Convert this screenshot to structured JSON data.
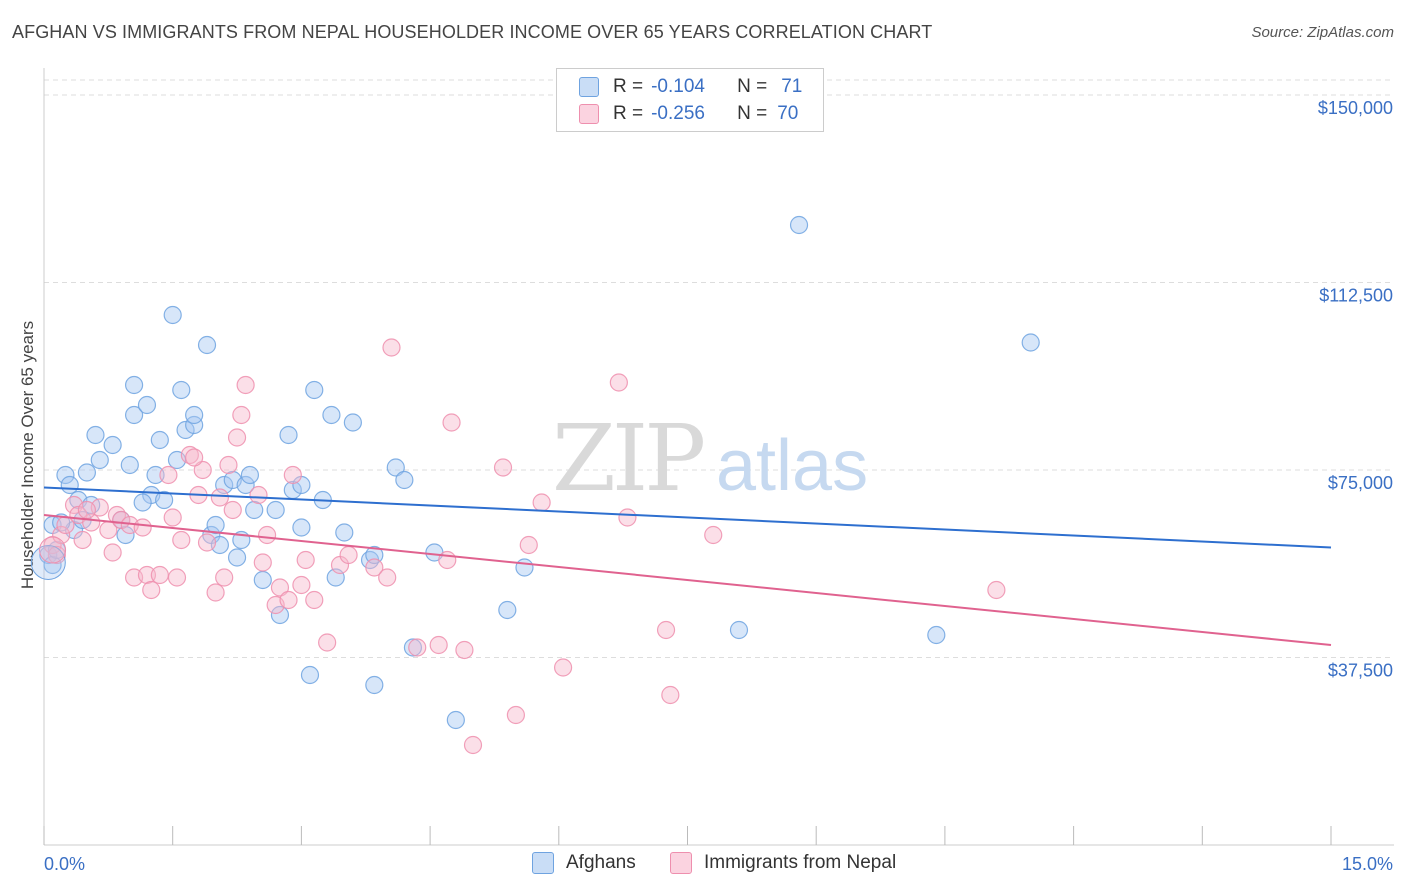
{
  "title": "AFGHAN VS IMMIGRANTS FROM NEPAL HOUSEHOLDER INCOME OVER 65 YEARS CORRELATION CHART",
  "source": "Source: ZipAtlas.com",
  "watermark": {
    "zip": "ZIP",
    "atlas": "atlas"
  },
  "legend": {
    "r_label": "R =",
    "n_label": "N =",
    "rows": [
      {
        "r": "-0.104",
        "n": "71",
        "color": "#a7c7f2"
      },
      {
        "r": "-0.256",
        "n": "70",
        "color": "#f7b9cc"
      }
    ]
  },
  "bottom_legend": [
    {
      "label": "Afghans",
      "color": "#a7c7f2"
    },
    {
      "label": "Immigrants from Nepal",
      "color": "#f7b9cc"
    }
  ],
  "chart_data": {
    "type": "scatter",
    "xlabel": "",
    "ylabel": "Householder Income Over 65 years",
    "xlim": [
      0,
      15
    ],
    "ylim": [
      0,
      153000
    ],
    "x_tick_labels": [
      "0.0%",
      "15.0%"
    ],
    "y_ticks": [
      37500,
      75000,
      112500,
      150000
    ],
    "y_tick_labels": [
      "$37,500",
      "$75,000",
      "$112,500",
      "$150,000"
    ],
    "grid": true,
    "series": [
      {
        "name": "Afghans",
        "color": "#6fa3e0",
        "fill": "#a7c7f2",
        "trend": {
          "x0": 0,
          "y0": 71500,
          "x1": 15,
          "y1": 59500,
          "color": "#2e6fcf"
        },
        "points": [
          [
            0.05,
            58000
          ],
          [
            0.1,
            56000
          ],
          [
            0.1,
            64000
          ],
          [
            0.15,
            59000
          ],
          [
            0.25,
            74000
          ],
          [
            0.3,
            72000
          ],
          [
            0.35,
            63000
          ],
          [
            0.4,
            69000
          ],
          [
            0.5,
            74500
          ],
          [
            0.6,
            82000
          ],
          [
            0.65,
            77000
          ],
          [
            0.8,
            80000
          ],
          [
            0.9,
            65000
          ],
          [
            0.95,
            62000
          ],
          [
            1.0,
            76000
          ],
          [
            1.05,
            86000
          ],
          [
            1.05,
            92000
          ],
          [
            1.2,
            88000
          ],
          [
            1.25,
            70000
          ],
          [
            1.3,
            74000
          ],
          [
            1.4,
            69000
          ],
          [
            1.35,
            81000
          ],
          [
            1.5,
            106000
          ],
          [
            1.55,
            77000
          ],
          [
            1.6,
            91000
          ],
          [
            1.65,
            83000
          ],
          [
            1.75,
            84000
          ],
          [
            1.75,
            86000
          ],
          [
            1.9,
            100000
          ],
          [
            1.95,
            62000
          ],
          [
            2.0,
            64000
          ],
          [
            2.05,
            60000
          ],
          [
            2.1,
            72000
          ],
          [
            2.2,
            73000
          ],
          [
            2.25,
            57500
          ],
          [
            2.3,
            61000
          ],
          [
            2.35,
            72000
          ],
          [
            2.4,
            74000
          ],
          [
            2.45,
            67000
          ],
          [
            2.55,
            53000
          ],
          [
            2.7,
            67000
          ],
          [
            2.75,
            46000
          ],
          [
            2.85,
            82000
          ],
          [
            2.9,
            71000
          ],
          [
            3.0,
            72000
          ],
          [
            3.0,
            63500
          ],
          [
            3.1,
            34000
          ],
          [
            3.15,
            91000
          ],
          [
            3.25,
            69000
          ],
          [
            3.35,
            86000
          ],
          [
            3.4,
            53500
          ],
          [
            3.5,
            62500
          ],
          [
            3.6,
            84500
          ],
          [
            3.8,
            57000
          ],
          [
            3.85,
            32000
          ],
          [
            3.85,
            58000
          ],
          [
            4.1,
            75500
          ],
          [
            4.2,
            73000
          ],
          [
            4.3,
            39500
          ],
          [
            4.55,
            58500
          ],
          [
            4.8,
            25000
          ],
          [
            5.4,
            47000
          ],
          [
            5.6,
            55500
          ],
          [
            8.1,
            43000
          ],
          [
            8.8,
            124000
          ],
          [
            10.4,
            42000
          ],
          [
            11.5,
            100500
          ],
          [
            0.45,
            65000
          ],
          [
            0.55,
            68000
          ],
          [
            1.15,
            68500
          ],
          [
            0.2,
            64500
          ]
        ]
      },
      {
        "name": "Immigrants from Nepal",
        "color": "#ee8fae",
        "fill": "#f7b9cc",
        "trend": {
          "x0": 0,
          "y0": 66000,
          "x1": 15,
          "y1": 40000,
          "color": "#e0628f"
        },
        "points": [
          [
            0.1,
            60000
          ],
          [
            0.15,
            58000
          ],
          [
            0.2,
            62000
          ],
          [
            0.25,
            64000
          ],
          [
            0.35,
            68000
          ],
          [
            0.4,
            66000
          ],
          [
            0.45,
            61000
          ],
          [
            0.55,
            64500
          ],
          [
            0.65,
            67500
          ],
          [
            0.75,
            63000
          ],
          [
            0.8,
            58500
          ],
          [
            0.85,
            66000
          ],
          [
            0.9,
            65000
          ],
          [
            1.0,
            64000
          ],
          [
            1.05,
            53500
          ],
          [
            1.15,
            63500
          ],
          [
            1.2,
            54000
          ],
          [
            1.25,
            51000
          ],
          [
            1.35,
            54000
          ],
          [
            1.45,
            74000
          ],
          [
            1.5,
            65500
          ],
          [
            1.55,
            53500
          ],
          [
            1.6,
            61000
          ],
          [
            1.7,
            78000
          ],
          [
            1.8,
            70000
          ],
          [
            1.85,
            75000
          ],
          [
            1.9,
            60500
          ],
          [
            2.0,
            50500
          ],
          [
            2.05,
            69500
          ],
          [
            2.1,
            53500
          ],
          [
            2.15,
            76000
          ],
          [
            2.2,
            67000
          ],
          [
            2.25,
            81500
          ],
          [
            2.3,
            86000
          ],
          [
            2.35,
            92000
          ],
          [
            2.5,
            70000
          ],
          [
            2.55,
            56500
          ],
          [
            2.6,
            62000
          ],
          [
            2.7,
            48000
          ],
          [
            2.75,
            51500
          ],
          [
            2.85,
            49000
          ],
          [
            2.9,
            74000
          ],
          [
            3.0,
            52000
          ],
          [
            3.05,
            57000
          ],
          [
            3.15,
            49000
          ],
          [
            3.3,
            40500
          ],
          [
            3.45,
            56000
          ],
          [
            3.55,
            58000
          ],
          [
            3.85,
            55500
          ],
          [
            4.0,
            53500
          ],
          [
            4.05,
            99500
          ],
          [
            4.35,
            39500
          ],
          [
            4.6,
            40000
          ],
          [
            4.7,
            57000
          ],
          [
            4.75,
            84500
          ],
          [
            4.9,
            39000
          ],
          [
            5.0,
            20000
          ],
          [
            5.35,
            75500
          ],
          [
            5.5,
            26000
          ],
          [
            5.65,
            60000
          ],
          [
            5.8,
            68500
          ],
          [
            6.05,
            35500
          ],
          [
            6.7,
            92500
          ],
          [
            6.8,
            65500
          ],
          [
            7.25,
            43000
          ],
          [
            7.3,
            30000
          ],
          [
            7.8,
            62000
          ],
          [
            11.1,
            51000
          ],
          [
            1.75,
            77500
          ],
          [
            0.5,
            67000
          ]
        ]
      }
    ]
  }
}
